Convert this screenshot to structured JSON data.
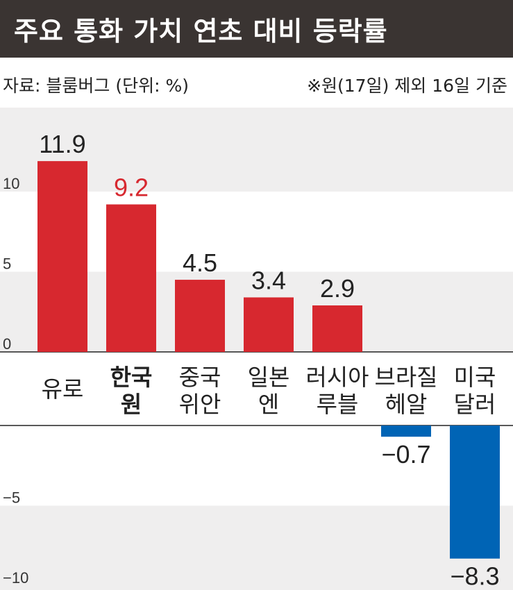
{
  "title": "주요 통화 가치 연초 대비 등락률",
  "source": "자료: 블룸버그 (단위: %)",
  "note": "※원(17일) 제외 16일 기준",
  "colors": {
    "positive": "#d7282f",
    "negative": "#0064b5",
    "highlight_text": "#d7282f",
    "band": "#efeeee",
    "title_bg": "#3a3432"
  },
  "chart_data": {
    "type": "bar",
    "title": "주요 통화 가치 연초 대비 등락률",
    "ylabel": "",
    "xlabel": "",
    "unit": "%",
    "ylim": [
      -10,
      13
    ],
    "yticks": [
      "10",
      "5",
      "0",
      "−5",
      "−10"
    ],
    "categories": [
      {
        "line1": "유로",
        "line2": "",
        "bold": false
      },
      {
        "line1": "한국",
        "line2": "원",
        "bold": true
      },
      {
        "line1": "중국",
        "line2": "위안",
        "bold": false
      },
      {
        "line1": "일본",
        "line2": "엔",
        "bold": false
      },
      {
        "line1": "러시아",
        "line2": "루블",
        "bold": false
      },
      {
        "line1": "브라질",
        "line2": "헤알",
        "bold": false
      },
      {
        "line1": "미국",
        "line2": "달러",
        "bold": false
      }
    ],
    "values": [
      11.9,
      9.2,
      4.5,
      3.4,
      2.9,
      -0.7,
      -8.3
    ],
    "value_labels": [
      "11.9",
      "9.2",
      "4.5",
      "3.4",
      "2.9",
      "−0.7",
      "−8.3"
    ],
    "highlight_index": 1,
    "grid": false,
    "legend": "none"
  }
}
